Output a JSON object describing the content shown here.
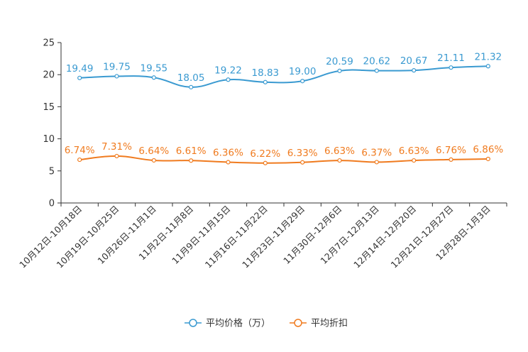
{
  "chart_data": {
    "type": "line",
    "title": "",
    "xlabel": "",
    "ylabel": "",
    "ylim": [
      0,
      25
    ],
    "yticks": [
      0,
      5,
      10,
      15,
      20,
      25
    ],
    "grid": false,
    "legend_position": "bottom-center",
    "categories": [
      "10月12日-10月18日",
      "10月19日-10月25日",
      "10月26日-11月1日",
      "11月2日-11月8日",
      "11月9日-11月15日",
      "11月16日-11月22日",
      "11月23日-11月29日",
      "11月30日-12月6日",
      "12月7日-12月13日",
      "12月14日-12月20日",
      "12月21日-12月27日",
      "12月28日-1月3日"
    ],
    "series": [
      {
        "name": "平均价格（万）",
        "color": "#3a9ad1",
        "label_format": "number",
        "values": [
          19.49,
          19.75,
          19.55,
          18.05,
          19.22,
          18.83,
          19.0,
          20.59,
          20.62,
          20.67,
          21.11,
          21.32
        ],
        "labels": [
          "19.49",
          "19.75",
          "19.55",
          "18.05",
          "19.22",
          "18.83",
          "19.00",
          "20.59",
          "20.62",
          "20.67",
          "21.11",
          "21.32"
        ]
      },
      {
        "name": "平均折扣",
        "color": "#f07b1f",
        "label_format": "percent",
        "values": [
          6.74,
          7.31,
          6.64,
          6.61,
          6.36,
          6.22,
          6.33,
          6.63,
          6.37,
          6.63,
          6.76,
          6.86
        ],
        "labels": [
          "6.74%",
          "7.31%",
          "6.64%",
          "6.61%",
          "6.36%",
          "6.22%",
          "6.33%",
          "6.63%",
          "6.37%",
          "6.63%",
          "6.76%",
          "6.86%"
        ]
      }
    ]
  }
}
